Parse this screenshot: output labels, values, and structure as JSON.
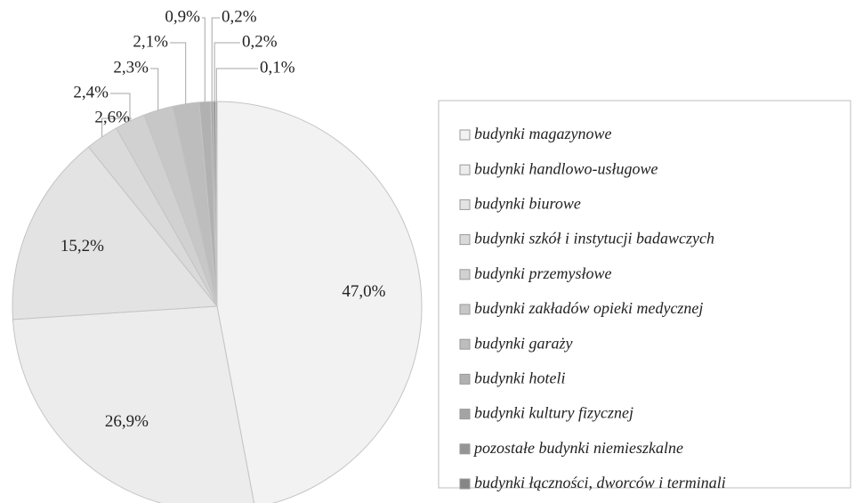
{
  "chart_data": {
    "type": "pie",
    "categories": [
      "budynki magazynowe",
      "budynki handlowo-usługowe",
      "budynki biurowe",
      "budynki szkół i instytucji badawczych",
      "budynki przemysłowe",
      "budynki zakładów opieki medycznej",
      "budynki garaży",
      "budynki hoteli",
      "budynki kultury fizycznej",
      "pozostałe budynki niemieszkalne",
      "budynki łączności, dworców i terminali"
    ],
    "values": [
      47.0,
      26.9,
      15.2,
      2.6,
      2.4,
      2.3,
      2.1,
      0.9,
      0.2,
      0.2,
      0.1
    ],
    "value_labels": [
      "47,0%",
      "26,9%",
      "15,2%",
      "2,6%",
      "2,4%",
      "2,3%",
      "2,1%",
      "0,9%",
      "0,2%",
      "0,2%",
      "0,1%"
    ],
    "colors": [
      "#f2f2f2",
      "#ececec",
      "#e3e3e3",
      "#dadada",
      "#d1d1d1",
      "#c7c7c7",
      "#bdbdbd",
      "#b1b1b1",
      "#a4a4a4",
      "#959595",
      "#868686"
    ],
    "legend": "right"
  }
}
